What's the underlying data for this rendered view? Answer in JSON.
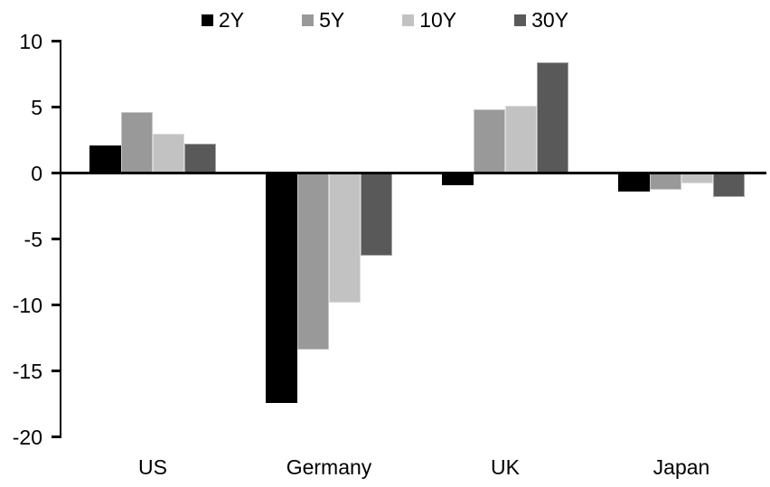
{
  "chart_data": {
    "type": "bar",
    "title": "",
    "categories": [
      "US",
      "Germany",
      "UK",
      "Japan"
    ],
    "series": [
      {
        "name": "2Y",
        "color": "#000000",
        "values": [
          2.1,
          -17.4,
          -0.9,
          -1.4
        ]
      },
      {
        "name": "5Y",
        "color": "#999999",
        "values": [
          4.6,
          -13.4,
          4.8,
          -1.3
        ]
      },
      {
        "name": "10Y",
        "color": "#c2c2c2",
        "values": [
          3.0,
          -9.8,
          5.1,
          -0.8
        ]
      },
      {
        "name": "30Y",
        "color": "#595959",
        "values": [
          2.2,
          -6.3,
          8.4,
          -1.8
        ]
      }
    ],
    "ylim": [
      -20,
      10
    ],
    "yticks": [
      10,
      5,
      0,
      -5,
      -10,
      -15,
      -20
    ],
    "grid": false,
    "legend_position": "top",
    "xlabel": "",
    "ylabel": ""
  },
  "colors": {
    "axis": "#000000",
    "background": "#ffffff"
  }
}
